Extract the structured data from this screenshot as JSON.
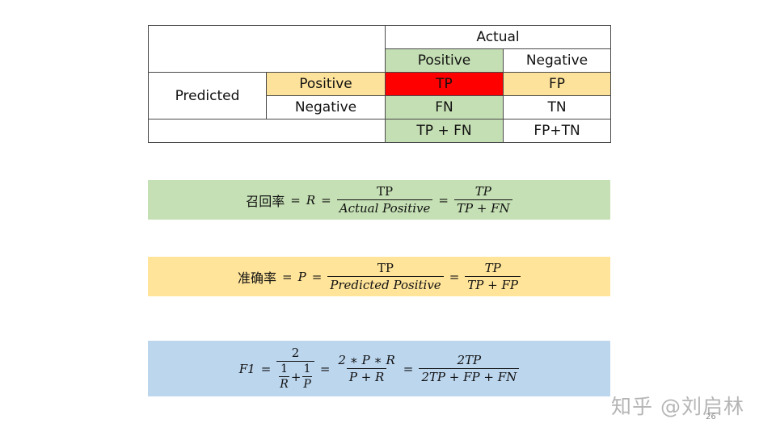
{
  "table": {
    "actual_label": "Actual",
    "actual_positive": "Positive",
    "actual_negative": "Negative",
    "predicted_label": "Predicted",
    "predicted_positive": "Positive",
    "predicted_negative": "Negative",
    "tp": "TP",
    "fp": "FP",
    "fn": "FN",
    "tn": "TN",
    "col_sum_positive": "TP + FN",
    "col_sum_negative": "FP+TN"
  },
  "recall": {
    "name": "召回率",
    "eq": "=",
    "symbol": "R",
    "frac1_num": "TP",
    "frac1_den": "Actual Positive",
    "frac2_num": "TP",
    "frac2_den": "TP + FN"
  },
  "precision": {
    "name": "准确率",
    "eq": "=",
    "symbol": "P",
    "frac1_num": "TP",
    "frac1_den": "Predicted Positive",
    "frac2_num": "TP",
    "frac2_den": "TP + FP"
  },
  "f1": {
    "symbol": "F1",
    "eq": "=",
    "frac1_num": "2",
    "one": "1",
    "r": "R",
    "plus": "+",
    "p": "P",
    "frac2_num": "2 ∗ P ∗ R",
    "frac2_den": "P + R",
    "frac3_num": "2TP",
    "frac3_den": "2TP + FP + FN"
  },
  "watermark": "知乎 @刘启林",
  "page_number": "26",
  "colors": {
    "green": "#c5e0b4",
    "yellow": "#ffe499",
    "blue": "#bcd6ee",
    "red": "#ff0000"
  }
}
